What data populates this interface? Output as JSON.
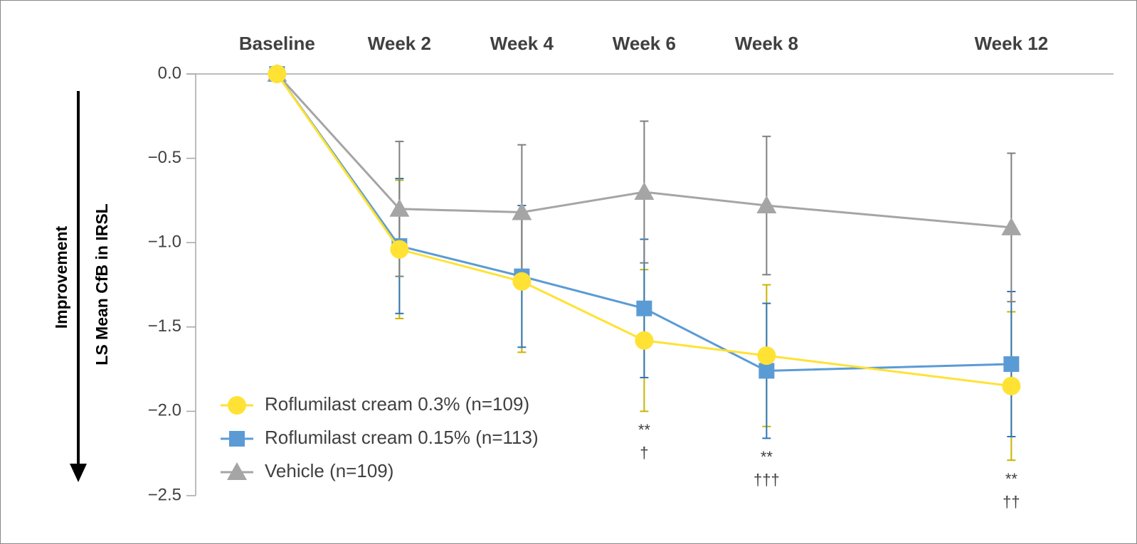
{
  "chart_data": {
    "type": "line",
    "ylabel": "LS Mean CfB in IRSL",
    "direction_label": "Improvement",
    "x": [
      0,
      2,
      4,
      6,
      8,
      12
    ],
    "xlim": [
      -1.33,
      13.67
    ],
    "xticks": [
      {
        "value": 0,
        "label": "Baseline"
      },
      {
        "value": 2,
        "label": "Week 2"
      },
      {
        "value": 4,
        "label": "Week 4"
      },
      {
        "value": 6,
        "label": "Week 6"
      },
      {
        "value": 8,
        "label": "Week 8"
      },
      {
        "value": 12,
        "label": "Week 12"
      }
    ],
    "ylim": [
      -2.5,
      0
    ],
    "yticks": [
      {
        "value": 0,
        "label": "0.0"
      },
      {
        "value": -0.5,
        "label": "−0.5"
      },
      {
        "value": -1,
        "label": "−1.0"
      },
      {
        "value": -1.5,
        "label": "−1.5"
      },
      {
        "value": -2,
        "label": "−2.0"
      },
      {
        "value": -2.5,
        "label": "−2.5"
      }
    ],
    "legend": "lower left",
    "series": [
      {
        "name": "Roflumilast cream 0.3% (n=109)",
        "color": "#ffe234",
        "error_color": "#c9b400",
        "marker": "circle",
        "values": [
          0,
          -1.04,
          -1.23,
          -1.58,
          -1.67,
          -1.85
        ],
        "errors": [
          null,
          0.41,
          0.42,
          0.42,
          0.42,
          0.44
        ]
      },
      {
        "name": "Roflumilast cream 0.15% (n=113)",
        "color": "#5b9bd5",
        "error_color": "#2e75b6",
        "marker": "square",
        "values": [
          0,
          -1.02,
          -1.2,
          -1.39,
          -1.76,
          -1.72
        ],
        "errors": [
          null,
          0.4,
          0.42,
          0.41,
          0.4,
          0.43
        ]
      },
      {
        "name": "Vehicle (n=109)",
        "color": "#a5a5a5",
        "error_color": "#7f7f7f",
        "marker": "triangle",
        "values": [
          0,
          -0.8,
          -0.82,
          -0.7,
          -0.78,
          -0.91
        ],
        "errors": [
          null,
          0.4,
          0.4,
          0.42,
          0.41,
          0.44
        ]
      }
    ],
    "annotations": [
      {
        "x": 6,
        "text": [
          "**",
          "†"
        ]
      },
      {
        "x": 8,
        "text": [
          "**",
          "†††"
        ]
      },
      {
        "x": 12,
        "text": [
          "**",
          "††"
        ]
      }
    ]
  }
}
